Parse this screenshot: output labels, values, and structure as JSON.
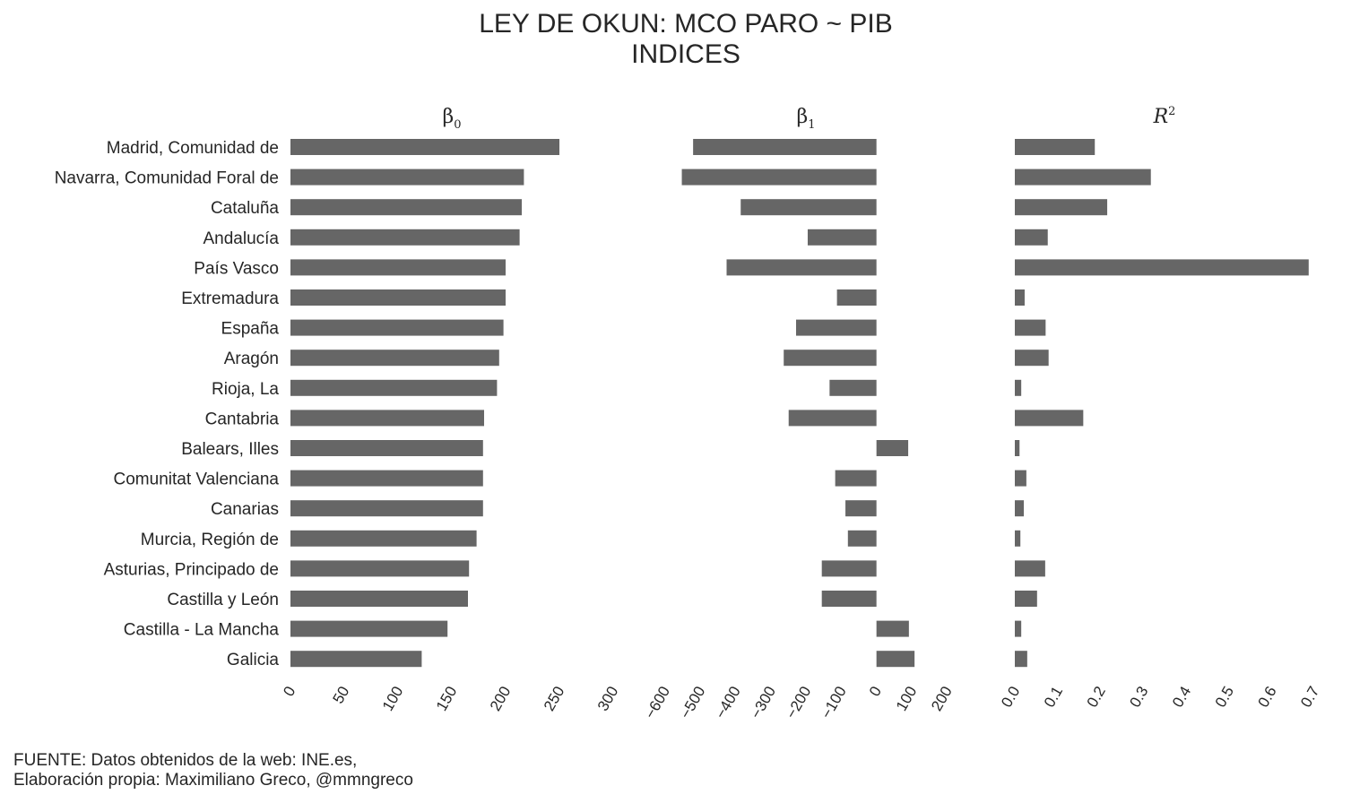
{
  "title": "LEY DE OKUN: MCO PARO ~ PIB",
  "subtitle": "INDICES",
  "footer": {
    "line1": "FUENTE: Datos obtenidos de la web: INE.es,",
    "line2": "Elaboración propia: Maximiliano Greco, @mmngreco"
  },
  "colors": {
    "bar": "#666666",
    "text": "#262626"
  },
  "chart_data": [
    {
      "type": "bar",
      "orientation": "horizontal",
      "title": "β0",
      "title_symbol": "β",
      "title_sub": "0",
      "categories": [
        "Madrid, Comunidad de",
        "Navarra, Comunidad Foral de",
        "Cataluña",
        "Andalucía",
        "País Vasco",
        "Extremadura",
        "España",
        "Aragón",
        "Rioja, La",
        "Cantabria",
        "Balears, Illes",
        "Comunitat Valenciana",
        "Canarias",
        "Murcia, Región de",
        "Asturias, Principado de",
        "Castilla y León",
        "Castilla - La Mancha",
        "Galicia"
      ],
      "values": [
        250,
        217,
        215,
        213,
        200,
        200,
        198,
        194,
        192,
        180,
        179,
        179,
        179,
        173,
        166,
        165,
        146,
        122
      ],
      "xlim": [
        0,
        300
      ],
      "xticks": [
        "0",
        "50",
        "100",
        "150",
        "200",
        "250",
        "300"
      ],
      "tick_values": [
        0,
        50,
        100,
        150,
        200,
        250,
        300
      ],
      "grid": false
    },
    {
      "type": "bar",
      "orientation": "horizontal",
      "title": "β1",
      "title_symbol": "β",
      "title_sub": "1",
      "categories": [
        "Madrid, Comunidad de",
        "Navarra, Comunidad Foral de",
        "Cataluña",
        "Andalucía",
        "País Vasco",
        "Extremadura",
        "España",
        "Aragón",
        "Rioja, La",
        "Cantabria",
        "Balears, Illes",
        "Comunitat Valenciana",
        "Canarias",
        "Murcia, Región de",
        "Asturias, Principado de",
        "Castilla y León",
        "Castilla - La Mancha",
        "Galicia"
      ],
      "values": [
        -520,
        -552,
        -385,
        -195,
        -425,
        -112,
        -228,
        -263,
        -133,
        -249,
        90,
        -117,
        -88,
        -81,
        -155,
        -155,
        92,
        108
      ],
      "xlim": [
        -650,
        250
      ],
      "xticks": [
        "−600",
        "−500",
        "−400",
        "−300",
        "−200",
        "−100",
        "0",
        "100",
        "200"
      ],
      "tick_values": [
        -600,
        -500,
        -400,
        -300,
        -200,
        -100,
        0,
        100,
        200
      ],
      "grid": false
    },
    {
      "type": "bar",
      "orientation": "horizontal",
      "title": "R2",
      "title_symbol": "R",
      "title_sup": "2",
      "categories": [
        "Madrid, Comunidad de",
        "Navarra, Comunidad Foral de",
        "Cataluña",
        "Andalucía",
        "País Vasco",
        "Extremadura",
        "España",
        "Aragón",
        "Rioja, La",
        "Cantabria",
        "Balears, Illes",
        "Comunitat Valenciana",
        "Canarias",
        "Murcia, Región de",
        "Asturias, Principado de",
        "Castilla y León",
        "Castilla - La Mancha",
        "Galicia"
      ],
      "values": [
        0.187,
        0.318,
        0.216,
        0.077,
        0.687,
        0.023,
        0.072,
        0.079,
        0.015,
        0.16,
        0.011,
        0.027,
        0.021,
        0.013,
        0.071,
        0.052,
        0.015,
        0.029
      ],
      "xlim": [
        0,
        0.7
      ],
      "xticks": [
        "0.0",
        "0.1",
        "0.2",
        "0.3",
        "0.4",
        "0.5",
        "0.6",
        "0.7"
      ],
      "tick_values": [
        0,
        0.1,
        0.2,
        0.3,
        0.4,
        0.5,
        0.6,
        0.7
      ],
      "grid": false
    }
  ]
}
